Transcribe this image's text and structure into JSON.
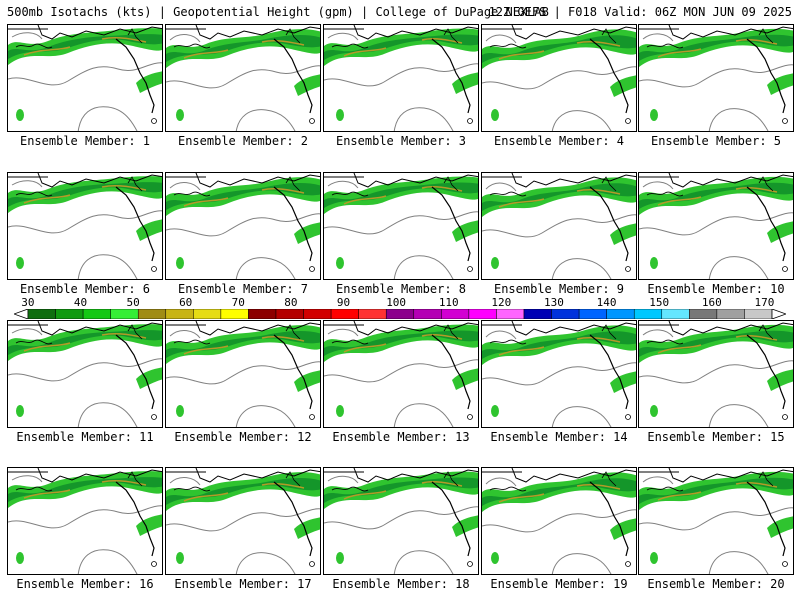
{
  "header": {
    "left": "500mb Isotachs (kts) | Geopotential Height (gpm) | College of DuPage NEXLAB",
    "right": "12Z GEFS | F018 Valid: 06Z MON JUN 09 2025"
  },
  "panels": [
    {
      "caption": "Ensemble Member: 1"
    },
    {
      "caption": "Ensemble Member: 2"
    },
    {
      "caption": "Ensemble Member: 3"
    },
    {
      "caption": "Ensemble Member: 4"
    },
    {
      "caption": "Ensemble Member: 5"
    },
    {
      "caption": "Ensemble Member: 6"
    },
    {
      "caption": "Ensemble Member: 7"
    },
    {
      "caption": "Ensemble Member: 8"
    },
    {
      "caption": "Ensemble Member: 9"
    },
    {
      "caption": "Ensemble Member: 10"
    },
    {
      "caption": "Ensemble Member: 11"
    },
    {
      "caption": "Ensemble Member: 12"
    },
    {
      "caption": "Ensemble Member: 13"
    },
    {
      "caption": "Ensemble Member: 14"
    },
    {
      "caption": "Ensemble Member: 15"
    },
    {
      "caption": "Ensemble Member: 16"
    },
    {
      "caption": "Ensemble Member: 17"
    },
    {
      "caption": "Ensemble Member: 18"
    },
    {
      "caption": "Ensemble Member: 19"
    },
    {
      "caption": "Ensemble Member: 20"
    }
  ],
  "colorbar": {
    "labels": [
      "30",
      "40",
      "50",
      "60",
      "70",
      "80",
      "90",
      "100",
      "110",
      "120",
      "130",
      "140",
      "150",
      "160",
      "170"
    ],
    "colors": [
      "#0f6e0f",
      "#109a10",
      "#14c814",
      "#36ee36",
      "#a08c14",
      "#c8b414",
      "#e6dc14",
      "#ffff00",
      "#8c0000",
      "#b40000",
      "#d20000",
      "#ff0000",
      "#ff3232",
      "#8c008c",
      "#b400b4",
      "#d200d2",
      "#ff00ff",
      "#ff64ff",
      "#0000b4",
      "#0032dc",
      "#0064ff",
      "#0096ff",
      "#00c8ff",
      "#64e6ff",
      "#787878",
      "#a0a0a0",
      "#c8c8c8"
    ]
  },
  "map_colors": {
    "jet_light": "#2fc42f",
    "jet_dark": "#14962a",
    "jet_core": "#b49a28",
    "height_contour": "#808080",
    "border": "#000000"
  }
}
